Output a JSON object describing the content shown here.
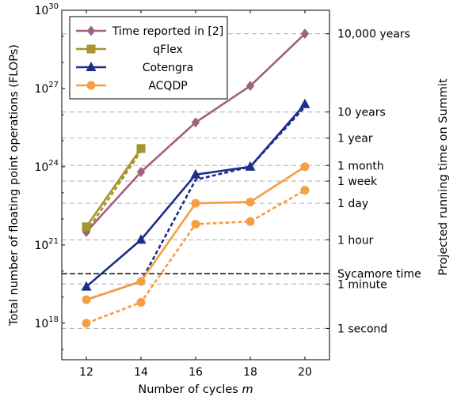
{
  "chart_data": {
    "type": "line",
    "xlabel": "Number of cycles m",
    "xlabel_parts": [
      "Number of cycles ",
      "m"
    ],
    "ylabel": "Total number of floating point operations (FLOPs)",
    "y2label": "Projected running time on Summit",
    "x_ticks": [
      12,
      14,
      16,
      18,
      20
    ],
    "xlim": [
      11.1,
      20.9
    ],
    "y_scale": "log10",
    "ylim_log10": [
      16.6,
      30
    ],
    "y_ticks_log10": [
      18,
      21,
      24,
      27,
      30
    ],
    "y_tick_base": "10",
    "right_ticks": [
      {
        "label": "10,000 years",
        "log10": 29.1
      },
      {
        "label": "10 years",
        "log10": 26.1
      },
      {
        "label": "1 year",
        "log10": 25.1
      },
      {
        "label": "1 month",
        "log10": 24.05
      },
      {
        "label": "1 week",
        "log10": 23.45
      },
      {
        "label": "1 day",
        "log10": 22.6
      },
      {
        "label": "1 hour",
        "log10": 21.2
      },
      {
        "label": "1 minute",
        "log10": 19.5
      },
      {
        "label": "1 second",
        "log10": 17.8
      }
    ],
    "reference_line": {
      "label": "Sycamore time",
      "log10": 19.9
    },
    "grid": "horizontal dashed at right-axis ticks",
    "legend_position": "top-left",
    "series": [
      {
        "name": "Time reported in [2]",
        "color": "#a0607e",
        "marker": "diamond",
        "style": "solid",
        "x": [
          12,
          14,
          16,
          18,
          20
        ],
        "y_log10": [
          21.5,
          23.8,
          25.7,
          27.1,
          29.1
        ]
      },
      {
        "name": "qFlex",
        "color": "#a4952c",
        "marker": "square",
        "style": "solid",
        "x": [
          12,
          14
        ],
        "y_log10": [
          21.7,
          24.7
        ]
      },
      {
        "name": "",
        "color": "#a4952c",
        "marker": "none",
        "style": "dashed",
        "x": [
          12,
          14
        ],
        "y_log10": [
          21.5,
          24.6
        ]
      },
      {
        "name": "Cotengra",
        "color": "#1a2e8a",
        "marker": "triangle",
        "style": "solid",
        "x": [
          12,
          14,
          16,
          18,
          20
        ],
        "y_log10": [
          19.4,
          21.2,
          23.7,
          24.0,
          26.4
        ]
      },
      {
        "name": "",
        "color": "#1a2e8a",
        "marker": "none",
        "style": "dashed",
        "x": [
          12,
          14,
          16,
          18,
          20
        ],
        "y_log10": [
          18.9,
          19.6,
          23.5,
          24.0,
          26.3
        ]
      },
      {
        "name": "ACQDP",
        "color": "#f59e42",
        "marker": "circle",
        "style": "solid",
        "x": [
          12,
          14,
          16,
          18,
          20
        ],
        "y_log10": [
          18.9,
          19.6,
          22.6,
          22.65,
          24.0
        ]
      },
      {
        "name": "",
        "color": "#f59e42",
        "marker": "circle",
        "style": "dashed",
        "x": [
          12,
          14,
          16,
          18,
          20
        ],
        "y_log10": [
          18.0,
          18.8,
          21.8,
          21.9,
          23.1
        ]
      }
    ]
  }
}
